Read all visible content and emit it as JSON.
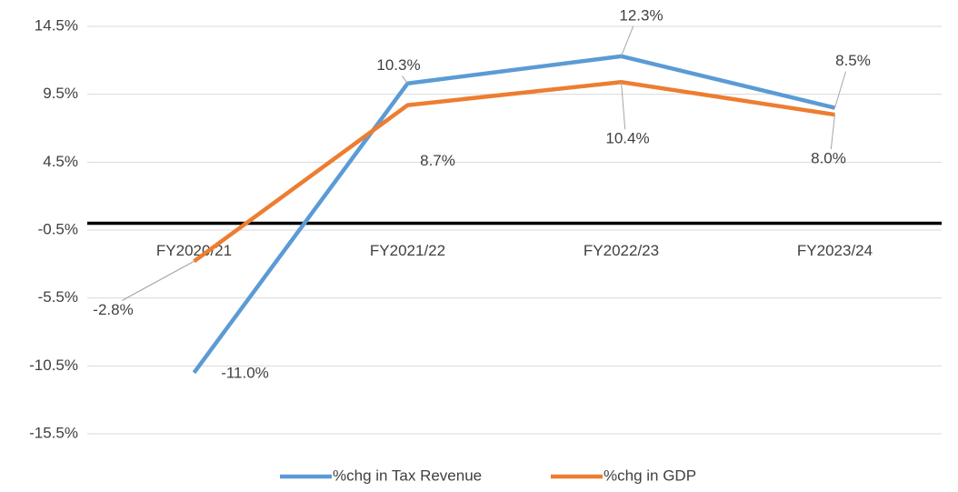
{
  "chart_data": {
    "type": "line",
    "categories": [
      "FY2020/21",
      "FY2021/22",
      "FY2022/23",
      "FY2023/24"
    ],
    "series": [
      {
        "name": "%chg in Tax Revenue",
        "color": "#5b9bd5",
        "values": [
          -11.0,
          10.3,
          12.3,
          8.5
        ],
        "value_labels": [
          "-11.0%",
          "10.3%",
          "12.3%",
          "8.5%"
        ]
      },
      {
        "name": "%chg in GDP",
        "color": "#ed7d31",
        "values": [
          -2.8,
          8.7,
          10.4,
          8.0
        ],
        "value_labels": [
          "-2.8%",
          "8.7%",
          "10.4%",
          "8.0%"
        ]
      }
    ],
    "ylim": [
      -15.5,
      14.5
    ],
    "yticks": [
      {
        "value": 14.5,
        "label": "14.5%"
      },
      {
        "value": 9.5,
        "label": "9.5%"
      },
      {
        "value": 4.5,
        "label": "4.5%"
      },
      {
        "value": -0.5,
        "label": "-0.5%"
      },
      {
        "value": -5.5,
        "label": "-5.5%"
      },
      {
        "value": -10.5,
        "label": "-10.5%"
      },
      {
        "value": -15.5,
        "label": "-15.5%"
      }
    ],
    "grid": true,
    "legend": "bottom"
  }
}
